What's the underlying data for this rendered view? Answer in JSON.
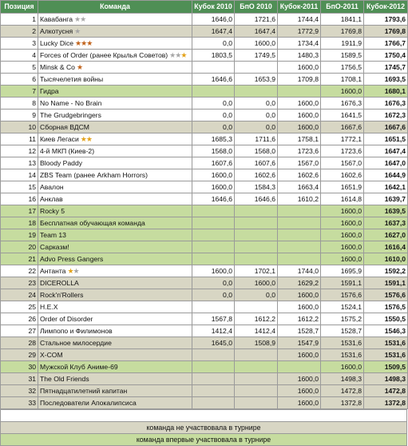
{
  "headers": [
    "Позиция",
    "Команда",
    "Кубок 2010",
    "БпО 2010",
    "Кубок-2011",
    "БпО-2011",
    "Кубок-2012"
  ],
  "rows": [
    {
      "pos": "1",
      "team": "Кавабанга",
      "stars": [
        "silver",
        "silver"
      ],
      "bg": "white",
      "v": [
        "1646,0",
        "1721,6",
        "1744,4",
        "1841,1",
        "1793,6"
      ]
    },
    {
      "pos": "2",
      "team": "Алкотусня",
      "stars": [
        "silver"
      ],
      "bg": "gray",
      "v": [
        "1647,4",
        "1647,4",
        "1772,9",
        "1769,8",
        "1769,8"
      ]
    },
    {
      "pos": "3",
      "team": "Lucky Dice",
      "stars": [
        "bronze",
        "bronze",
        "bronze"
      ],
      "bg": "white",
      "v": [
        "0,0",
        "1600,0",
        "1734,4",
        "1911,9",
        "1766,7"
      ]
    },
    {
      "pos": "4",
      "team": "Forces of Order (ранее Крылья Советов)",
      "stars": [
        "silver",
        "silver",
        "gold"
      ],
      "bg": "white",
      "v": [
        "1803,5",
        "1749,5",
        "1480,3",
        "1589,5",
        "1750,4"
      ]
    },
    {
      "pos": "5",
      "team": "Minsk & Co",
      "stars": [
        "bronze"
      ],
      "bg": "white",
      "v": [
        "",
        "",
        "1600,0",
        "1756,5",
        "1745,7"
      ]
    },
    {
      "pos": "6",
      "team": "Тысячелетия войны",
      "stars": [],
      "bg": "white",
      "v": [
        "1646,6",
        "1653,9",
        "1709,8",
        "1708,1",
        "1693,5"
      ]
    },
    {
      "pos": "7",
      "team": "Гидра",
      "stars": [],
      "bg": "green",
      "v": [
        "",
        "",
        "",
        "1600,0",
        "1680,1"
      ]
    },
    {
      "pos": "8",
      "team": "No Name - No Brain",
      "stars": [],
      "bg": "white",
      "v": [
        "0,0",
        "0,0",
        "1600,0",
        "1676,3",
        "1676,3"
      ]
    },
    {
      "pos": "9",
      "team": "The Grudgebringers",
      "stars": [],
      "bg": "white",
      "v": [
        "0,0",
        "0,0",
        "1600,0",
        "1641,5",
        "1672,3"
      ]
    },
    {
      "pos": "10",
      "team": "Сборная ВДСМ",
      "stars": [],
      "bg": "gray",
      "v": [
        "0,0",
        "0,0",
        "1600,0",
        "1667,6",
        "1667,6"
      ]
    },
    {
      "pos": "11",
      "team": "Киев Легаси",
      "stars": [
        "gold",
        "gold"
      ],
      "bg": "white",
      "v": [
        "1685,3",
        "1711,6",
        "1758,1",
        "1772,1",
        "1651,5"
      ]
    },
    {
      "pos": "12",
      "team": "4-й МКП (Киев-2)",
      "stars": [],
      "bg": "white",
      "v": [
        "1568,0",
        "1568,0",
        "1723,6",
        "1723,6",
        "1647,4"
      ]
    },
    {
      "pos": "13",
      "team": "Bloody Paddy",
      "stars": [],
      "bg": "white",
      "v": [
        "1607,6",
        "1607,6",
        "1567,0",
        "1567,0",
        "1647,0"
      ]
    },
    {
      "pos": "14",
      "team": "ZBS Team (ранее Arkham Horrors)",
      "stars": [],
      "bg": "white",
      "v": [
        "1600,0",
        "1602,6",
        "1602,6",
        "1602,6",
        "1644,9"
      ]
    },
    {
      "pos": "15",
      "team": "Авалон",
      "stars": [],
      "bg": "white",
      "v": [
        "1600,0",
        "1584,3",
        "1663,4",
        "1651,9",
        "1642,1"
      ]
    },
    {
      "pos": "16",
      "team": "Анклав",
      "stars": [],
      "bg": "white",
      "v": [
        "1646,6",
        "1646,6",
        "1610,2",
        "1614,8",
        "1639,7"
      ]
    },
    {
      "pos": "17",
      "team": "Rocky 5",
      "stars": [],
      "bg": "green",
      "v": [
        "",
        "",
        "",
        "1600,0",
        "1639,5"
      ]
    },
    {
      "pos": "18",
      "team": "Бесплатная обучающая команда",
      "stars": [],
      "bg": "green",
      "v": [
        "",
        "",
        "",
        "1600,0",
        "1637,3"
      ]
    },
    {
      "pos": "19",
      "team": "Team 13",
      "stars": [],
      "bg": "green",
      "v": [
        "",
        "",
        "",
        "1600,0",
        "1627,0"
      ]
    },
    {
      "pos": "20",
      "team": "Сарказм!",
      "stars": [],
      "bg": "green",
      "v": [
        "",
        "",
        "",
        "1600,0",
        "1616,4"
      ]
    },
    {
      "pos": "21",
      "team": "Advo Press Gangers",
      "stars": [],
      "bg": "green",
      "v": [
        "",
        "",
        "",
        "1600,0",
        "1610,0"
      ]
    },
    {
      "pos": "22",
      "team": "Антанта",
      "stars": [
        "gold",
        "silver"
      ],
      "bg": "white",
      "v": [
        "1600,0",
        "1702,1",
        "1744,0",
        "1695,9",
        "1592,2"
      ]
    },
    {
      "pos": "23",
      "team": "DICEROLLA",
      "stars": [],
      "bg": "gray",
      "v": [
        "0,0",
        "1600,0",
        "1629,2",
        "1591,1",
        "1591,1"
      ]
    },
    {
      "pos": "24",
      "team": "Rock'n'Rollers",
      "stars": [],
      "bg": "gray",
      "v": [
        "0,0",
        "0,0",
        "1600,0",
        "1576,6",
        "1576,6"
      ]
    },
    {
      "pos": "25",
      "team": "H.E.X",
      "stars": [],
      "bg": "white",
      "v": [
        "",
        "",
        "1600,0",
        "1524,1",
        "1576,5"
      ]
    },
    {
      "pos": "26",
      "team": "Order of Disorder",
      "stars": [],
      "bg": "white",
      "v": [
        "1567,8",
        "1612,2",
        "1612,2",
        "1575,2",
        "1550,5"
      ]
    },
    {
      "pos": "27",
      "team": "Лимпопо и Филимонов",
      "stars": [],
      "bg": "white",
      "v": [
        "1412,4",
        "1412,4",
        "1528,7",
        "1528,7",
        "1546,3"
      ]
    },
    {
      "pos": "28",
      "team": "Стальное милосердие",
      "stars": [],
      "bg": "gray",
      "v": [
        "1645,0",
        "1508,9",
        "1547,9",
        "1531,6",
        "1531,6"
      ]
    },
    {
      "pos": "29",
      "team": "X-COM",
      "stars": [],
      "bg": "gray",
      "v": [
        "",
        "",
        "1600,0",
        "1531,6",
        "1531,6"
      ]
    },
    {
      "pos": "30",
      "team": "Мужской Клуб Аниме-69",
      "stars": [],
      "bg": "green",
      "v": [
        "",
        "",
        "",
        "1600,0",
        "1509,5"
      ]
    },
    {
      "pos": "31",
      "team": "The Old Friends",
      "stars": [],
      "bg": "gray",
      "v": [
        "",
        "",
        "1600,0",
        "1498,3",
        "1498,3"
      ]
    },
    {
      "pos": "32",
      "team": "Пятнадцатилетний капитан",
      "stars": [],
      "bg": "gray",
      "v": [
        "",
        "",
        "1600,0",
        "1472,8",
        "1472,8"
      ]
    },
    {
      "pos": "33",
      "team": "Последователи Апокалипсиса",
      "stars": [],
      "bg": "gray",
      "v": [
        "",
        "",
        "1600,0",
        "1372,8",
        "1372,8"
      ]
    }
  ],
  "legend": {
    "not_participated": "команда не участвовала в турнире",
    "first_time": "команда впервые участвовала в турнире"
  },
  "colors": {
    "header_bg": "#4f8f55",
    "gray_row": "#d8d6c4",
    "green_row": "#c6dc9f",
    "star_silver": "#a6a6a6",
    "star_gold": "#e3a21a",
    "star_bronze": "#c1621a"
  }
}
